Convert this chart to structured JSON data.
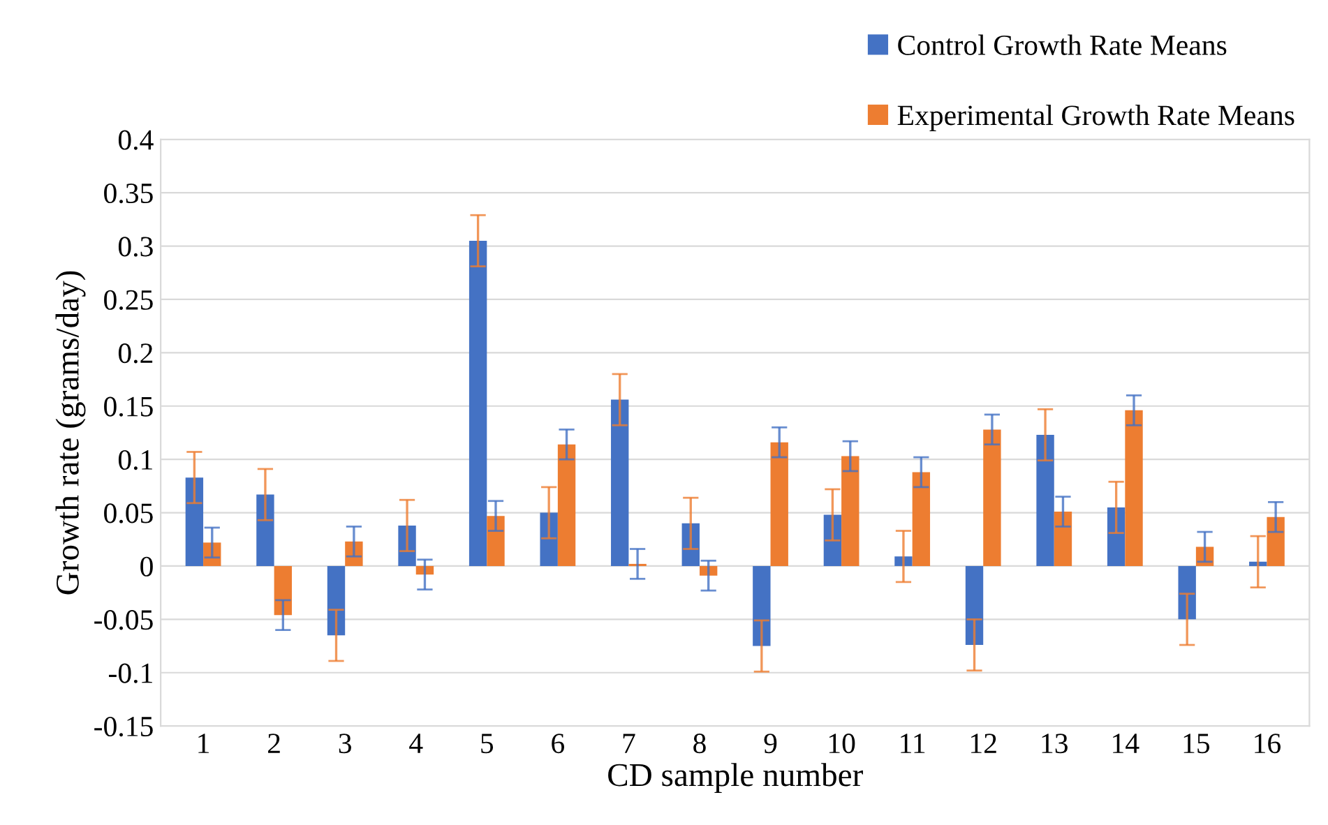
{
  "chart_data": {
    "type": "bar",
    "xlabel": "CD sample number",
    "ylabel": "Growth rate (grams/day)",
    "categories": [
      "1",
      "2",
      "3",
      "4",
      "5",
      "6",
      "7",
      "8",
      "9",
      "10",
      "11",
      "12",
      "13",
      "14",
      "15",
      "16"
    ],
    "series": [
      {
        "name": "Control Growth Rate Means",
        "color": "#4472c4",
        "values": [
          0.083,
          0.067,
          -0.065,
          0.038,
          0.305,
          0.05,
          0.156,
          0.04,
          -0.075,
          0.048,
          0.009,
          -0.074,
          0.123,
          0.055,
          -0.05,
          0.004
        ],
        "errors": [
          0.024,
          0.024,
          0.024,
          0.024,
          0.024,
          0.024,
          0.024,
          0.024,
          0.024,
          0.024,
          0.024,
          0.024,
          0.024,
          0.024,
          0.024,
          0.024
        ]
      },
      {
        "name": "Experimental Growth Rate Means",
        "color": "#ed7d31",
        "values": [
          0.022,
          -0.046,
          0.023,
          -0.008,
          0.047,
          0.114,
          0.002,
          -0.009,
          0.116,
          0.103,
          0.088,
          0.128,
          0.051,
          0.146,
          0.018,
          0.046
        ],
        "errors": [
          0.014,
          0.014,
          0.014,
          0.014,
          0.014,
          0.014,
          0.014,
          0.014,
          0.014,
          0.014,
          0.014,
          0.014,
          0.014,
          0.014,
          0.014,
          0.014
        ]
      }
    ],
    "ylim": [
      -0.15,
      0.4
    ],
    "yticks": [
      -0.15,
      -0.1,
      -0.05,
      0,
      0.05,
      0.1,
      0.15,
      0.2,
      0.25,
      0.3,
      0.35,
      0.4
    ],
    "grid": "y",
    "legend": "top right"
  }
}
